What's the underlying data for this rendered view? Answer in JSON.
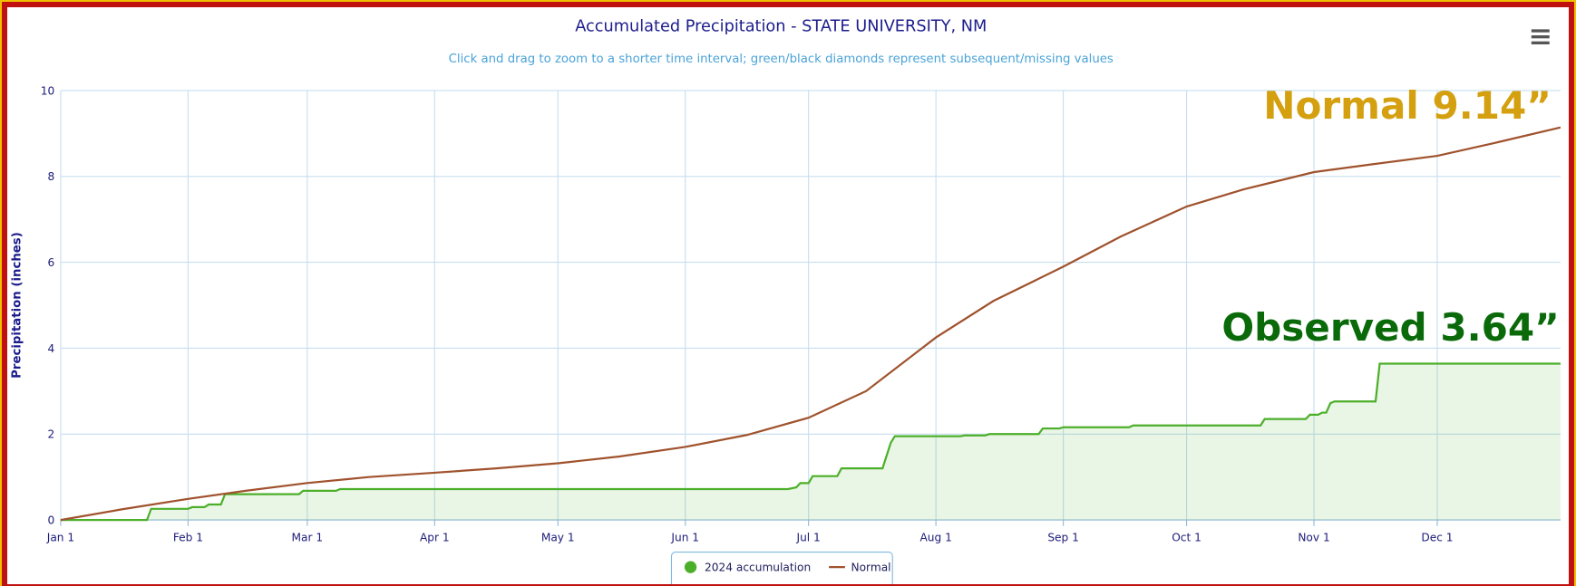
{
  "chart_data": {
    "type": "line",
    "title": "Accumulated Precipitation - STATE UNIVERSITY, NM",
    "subtitle": "Click and drag to zoom to a shorter time interval; green/black diamonds represent subsequent/missing values",
    "ylabel": "Precipitation (inches)",
    "xlim": [
      0,
      365
    ],
    "xticks": [
      {
        "value": 0,
        "label": "Jan 1"
      },
      {
        "value": 31,
        "label": "Feb 1"
      },
      {
        "value": 60,
        "label": "Mar 1"
      },
      {
        "value": 91,
        "label": "Apr 1"
      },
      {
        "value": 121,
        "label": "May 1"
      },
      {
        "value": 152,
        "label": "Jun 1"
      },
      {
        "value": 182,
        "label": "Jul 1"
      },
      {
        "value": 213,
        "label": "Aug 1"
      },
      {
        "value": 244,
        "label": "Sep 1"
      },
      {
        "value": 274,
        "label": "Oct 1"
      },
      {
        "value": 305,
        "label": "Nov 1"
      },
      {
        "value": 335,
        "label": "Dec 1"
      }
    ],
    "ylim": [
      0,
      10
    ],
    "yticks": [
      0,
      2,
      4,
      6,
      8,
      10
    ],
    "grid": true,
    "series": [
      {
        "name": "2024 accumulation",
        "color": "#4caf2a",
        "area": true,
        "x": [
          0,
          21,
          22,
          31,
          32,
          35,
          36,
          39,
          40,
          58,
          59,
          67,
          68,
          177,
          179,
          180,
          182,
          183,
          189,
          190,
          200,
          202,
          203,
          219,
          220,
          225,
          226,
          238,
          239,
          243,
          244,
          260,
          261,
          292,
          293,
          303,
          304,
          306,
          307,
          308,
          309,
          310,
          320,
          321,
          365
        ],
        "values": [
          0,
          0,
          0.26,
          0.26,
          0.3,
          0.3,
          0.36,
          0.36,
          0.6,
          0.6,
          0.68,
          0.68,
          0.72,
          0.72,
          0.76,
          0.86,
          0.86,
          1.02,
          1.02,
          1.2,
          1.2,
          1.8,
          1.95,
          1.95,
          1.97,
          1.97,
          2.0,
          2.0,
          2.13,
          2.13,
          2.16,
          2.16,
          2.2,
          2.2,
          2.35,
          2.35,
          2.45,
          2.45,
          2.5,
          2.5,
          2.72,
          2.76,
          2.76,
          3.64,
          3.64
        ]
      },
      {
        "name": "Normal",
        "color": "#a0522d",
        "area": false,
        "x": [
          0,
          15,
          31,
          45,
          60,
          75,
          91,
          106,
          121,
          136,
          152,
          167,
          182,
          196,
          213,
          227,
          244,
          258,
          274,
          288,
          305,
          319,
          335,
          349,
          365
        ],
        "values": [
          0,
          0.25,
          0.49,
          0.68,
          0.86,
          1.0,
          1.1,
          1.2,
          1.32,
          1.48,
          1.7,
          1.98,
          2.38,
          3.0,
          4.25,
          5.1,
          5.9,
          6.6,
          7.3,
          7.7,
          8.1,
          8.28,
          8.48,
          8.78,
          9.14
        ]
      }
    ],
    "annotations": [
      {
        "text": "Normal 9.14”",
        "color": "#d4a010"
      },
      {
        "text": "Observed 3.64”",
        "color": "#0a6a0a"
      }
    ]
  }
}
